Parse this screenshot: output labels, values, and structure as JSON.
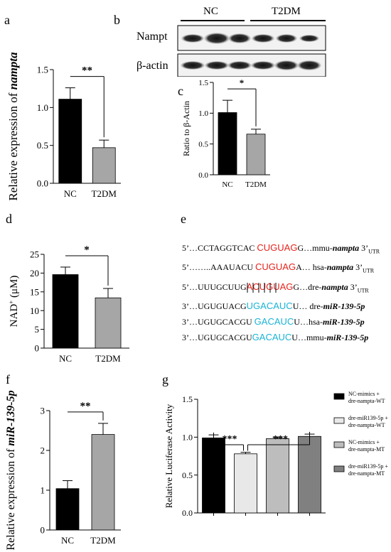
{
  "colors": {
    "black": "#000000",
    "gray": "#a6a6a6",
    "light": "#e8e8e8",
    "mid": "#bdbdbd",
    "dark": "#808080",
    "red": "#e8221c",
    "cyan": "#1ab3d6"
  },
  "panel_labels": {
    "a": "a",
    "b": "b",
    "c": "c",
    "d": "d",
    "e": "e",
    "f": "f",
    "g": "g"
  },
  "western": {
    "groups": [
      "NC",
      "T2DM"
    ],
    "rows": [
      "Nampt",
      "β-actin"
    ]
  },
  "sequences": [
    {
      "pre": "5’…CCTAGGTCAC ",
      "hl": "CUGUAG",
      "post": "G…mmu-",
      "gene": "nampta",
      "tail": " 3’",
      "sub": "UTR",
      "color": "red"
    },
    {
      "pre": "5’……..AAAUACU ",
      "hl": "CUGUAG",
      "post": "A… hsa-",
      "gene": "nampta",
      "tail": " 3’",
      "sub": "UTR",
      "color": "red"
    },
    {
      "pre": "5’…UUUGCUUG",
      "hl": "ACUGUAG",
      "post": "G…dre-",
      "gene": "nampta",
      "tail": " 3’",
      "sub": "UTR",
      "color": "red"
    },
    {
      "pre": "3’…UGUGUACG",
      "hl": "UGACAUC",
      "post": "U… dre-",
      "gene": "miR-139-5p",
      "tail": "",
      "sub": "",
      "color": "cyan"
    },
    {
      "pre": "3’…UGUGCACGU ",
      "hl": "GACAUC",
      "post": "U…hsa-",
      "gene": "miR-139-5p",
      "tail": "",
      "sub": "",
      "color": "cyan"
    },
    {
      "pre": "3’…UGUGCACGU",
      "hl": "GACAUC",
      "post": "U…mmu-",
      "gene": "miR-139-5p",
      "tail": "",
      "sub": "",
      "color": "cyan"
    }
  ],
  "chart_data": [
    {
      "id": "a",
      "type": "bar",
      "categories": [
        "NC",
        "T2DM"
      ],
      "values": [
        1.11,
        0.47
      ],
      "errors": [
        0.15,
        0.1
      ],
      "ylim": [
        0,
        1.5
      ],
      "yticks": [
        "0.0",
        "0.5",
        "1.0",
        "1.5"
      ],
      "ylabel_pre": "Relative expression of ",
      "ylabel_em": "nampta",
      "significance": "**",
      "bar_colors": [
        "#000000",
        "#a6a6a6"
      ]
    },
    {
      "id": "c",
      "type": "bar",
      "categories": [
        "NC",
        "T2DM"
      ],
      "values": [
        1.01,
        0.66
      ],
      "errors": [
        0.2,
        0.08
      ],
      "ylim": [
        0,
        1.5
      ],
      "yticks": [
        "0.0",
        "0.5",
        "1.0",
        "1.5"
      ],
      "ylabel_pre": "Ratio to β-Actin",
      "ylabel_em": "",
      "significance": "*",
      "bar_colors": [
        "#000000",
        "#a6a6a6"
      ]
    },
    {
      "id": "d",
      "type": "bar",
      "categories": [
        "NC",
        "T2DM"
      ],
      "values": [
        19.6,
        13.4
      ],
      "errors": [
        2.0,
        2.5
      ],
      "ylim": [
        0,
        25
      ],
      "yticks": [
        "0",
        "5",
        "10",
        "15",
        "20",
        "25"
      ],
      "ylabel_pre": "NAD",
      "ylabel_sup": "+",
      "ylabel_post": " (μM)",
      "ylabel_em": "",
      "significance": "*",
      "bar_colors": [
        "#000000",
        "#a6a6a6"
      ]
    },
    {
      "id": "f",
      "type": "bar",
      "categories": [
        "NC",
        "T2DM"
      ],
      "values": [
        1.04,
        2.4
      ],
      "errors": [
        0.2,
        0.28
      ],
      "ylim": [
        0,
        3
      ],
      "yticks": [
        "0",
        "1",
        "2",
        "3"
      ],
      "ylabel_pre": "Relative expression of ",
      "ylabel_em": "miR-139-5p",
      "significance": "**",
      "bar_colors": [
        "#000000",
        "#a6a6a6"
      ]
    },
    {
      "id": "g",
      "type": "bar",
      "categories": [
        "NC-mimics + dre-nampta-WT",
        "dre-miR139-5p + dre-nampta-WT",
        "NC-mimics + dre-nampta-MT",
        "dre-miR139-5p + dre-nampta-MT"
      ],
      "values": [
        0.99,
        0.78,
        0.98,
        1.01
      ],
      "errors": [
        0.04,
        0.02,
        0.02,
        0.03
      ],
      "ylim": [
        0,
        1.5
      ],
      "yticks": [
        "0.0",
        "0.5",
        "1.0",
        "1.5"
      ],
      "ylabel_pre": "Relative Luciferase Activity",
      "ylabel_em": "",
      "significance": "***",
      "grid": false,
      "bar_colors": [
        "#000000",
        "#e8e8e8",
        "#bdbdbd",
        "#808080"
      ],
      "legend": [
        [
          "NC-mimics +",
          "dre-nampta-WT"
        ],
        [
          "dre-miR139-5p +",
          "dre-nampta-WT"
        ],
        [
          "NC-mimics +",
          "dre-nampta-MT"
        ],
        [
          "dre-miR139-5p +",
          "dre-nampta-MT"
        ]
      ]
    }
  ]
}
